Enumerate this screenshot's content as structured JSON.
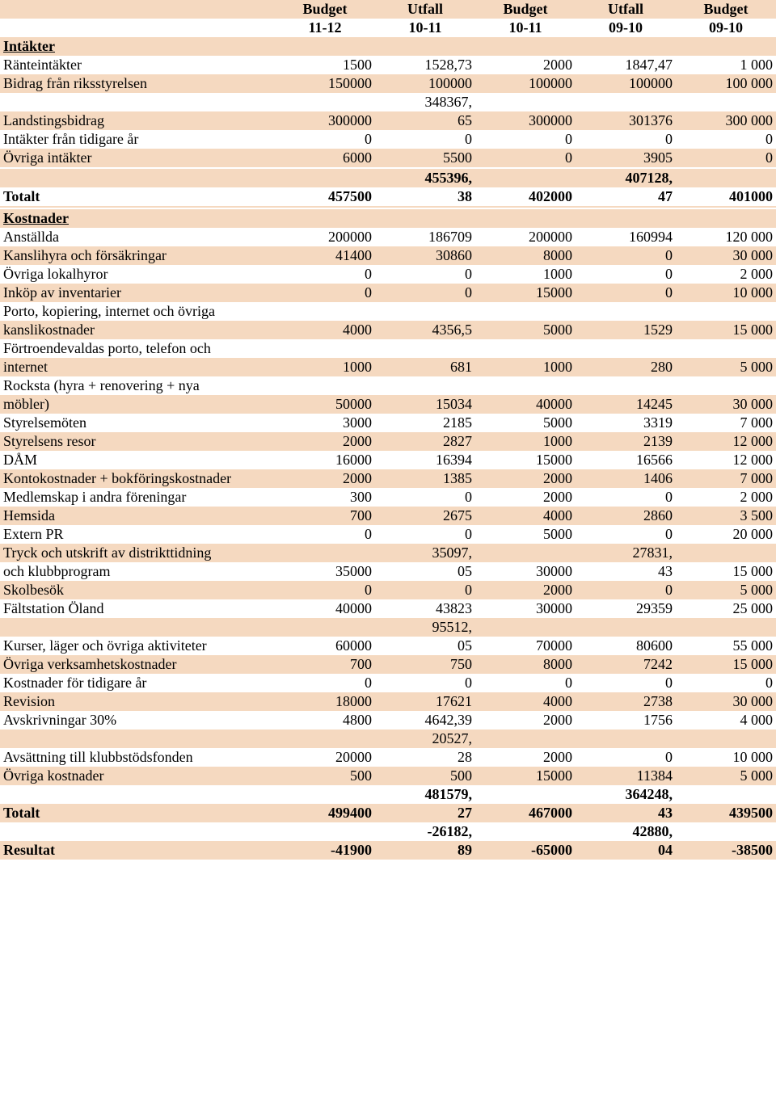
{
  "colors": {
    "odd_row_bg": "#f5d9c0",
    "even_row_bg": "#ffffff",
    "text": "#000000"
  },
  "typography": {
    "font_family": "Times New Roman",
    "base_fontsize": 18,
    "header_bold": true
  },
  "headers": {
    "row1": [
      "Budget",
      "Utfall",
      "Budget",
      "Utfall",
      "Budget"
    ],
    "row2": [
      "11-12",
      "10-11",
      "10-11",
      "09-10",
      "09-10"
    ]
  },
  "sections": {
    "intakter": {
      "title": "Intäkter",
      "rows": [
        {
          "label": "Ränteintäkter",
          "c": [
            "1500",
            "1528,73",
            "2000",
            "1847,47",
            "1 000"
          ]
        },
        {
          "label": "Bidrag från riksstyrelsen",
          "c": [
            "150000",
            "100000",
            "100000",
            "100000",
            "100 000"
          ]
        },
        {
          "label": "Landstingsbidrag",
          "c": [
            "300000",
            "348367,65",
            "300000",
            "301376",
            "300 000"
          ],
          "split2": true
        },
        {
          "label": "Intäkter från tidigare år",
          "c": [
            "0",
            "0",
            "0",
            "0",
            "0"
          ]
        },
        {
          "label": "Övriga intäkter",
          "c": [
            "6000",
            "5500",
            "0",
            "3905",
            "0"
          ]
        }
      ],
      "total": {
        "label": "Totalt",
        "c": [
          "457500",
          "455396,38",
          "402000",
          "407128,47",
          "401000"
        ],
        "split24": true
      }
    },
    "kostnader": {
      "title": "Kostnader",
      "rows": [
        {
          "label": "Anställda",
          "c": [
            "200000",
            "186709",
            "200000",
            "160994",
            "120 000"
          ]
        },
        {
          "label": "Kanslihyra och försäkringar",
          "c": [
            "41400",
            "30860",
            "8000",
            "0",
            "30 000"
          ]
        },
        {
          "label": "Övriga lokalhyror",
          "c": [
            "0",
            "0",
            "1000",
            "0",
            "2 000"
          ]
        },
        {
          "label": "Inköp av inventarier",
          "c": [
            "0",
            "0",
            "15000",
            "0",
            "10 000"
          ]
        },
        {
          "label": "Porto, kopiering, internet och övriga kanslikostnader",
          "c": [
            "4000",
            "4356,5",
            "5000",
            "1529",
            "15 000"
          ],
          "two_line_label": true
        },
        {
          "label": "Förtroendevaldas porto, telefon och internet",
          "c": [
            "1000",
            "681",
            "1000",
            "280",
            "5 000"
          ],
          "two_line_label": true
        },
        {
          "label": "Rocksta (hyra + renovering + nya möbler)",
          "c": [
            "50000",
            "15034",
            "40000",
            "14245",
            "30 000"
          ],
          "two_line_label": true
        },
        {
          "label": "Styrelsemöten",
          "c": [
            "3000",
            "2185",
            "5000",
            "3319",
            "7 000"
          ]
        },
        {
          "label": "Styrelsens resor",
          "c": [
            "2000",
            "2827",
            "1000",
            "2139",
            "12 000"
          ]
        },
        {
          "label": "DÅM",
          "c": [
            "16000",
            "16394",
            "15000",
            "16566",
            "12 000"
          ]
        },
        {
          "label": "Kontokostnader + bokföringskostnader",
          "c": [
            "2000",
            "1385",
            "2000",
            "1406",
            "7 000"
          ]
        },
        {
          "label": "Medlemskap i andra föreningar",
          "c": [
            "300",
            "0",
            "2000",
            "0",
            "2 000"
          ]
        },
        {
          "label": "Hemsida",
          "c": [
            "700",
            "2675",
            "4000",
            "2860",
            "3 500"
          ]
        },
        {
          "label": "Extern PR",
          "c": [
            "0",
            "0",
            "5000",
            "0",
            "20 000"
          ]
        },
        {
          "label": "Tryck och utskrift av distrikttidning och klubbprogram",
          "c": [
            "35000",
            "35097,05",
            "30000",
            "27831,43",
            "15 000"
          ],
          "two_line_label": true,
          "split24": true
        },
        {
          "label": "Skolbesök",
          "c": [
            "0",
            "0",
            "2000",
            "0",
            "5 000"
          ]
        },
        {
          "label": "Fältstation Öland",
          "c": [
            "40000",
            "43823",
            "30000",
            "29359",
            "25 000"
          ]
        },
        {
          "label": "Kurser, läger och övriga aktiviteter",
          "c": [
            "60000",
            "95512,05",
            "70000",
            "80600",
            "55 000"
          ],
          "split2": true
        },
        {
          "label": "Övriga verksamhetskostnader",
          "c": [
            "700",
            "750",
            "8000",
            "7242",
            "15 000"
          ]
        },
        {
          "label": "Kostnader för tidigare år",
          "c": [
            "0",
            "0",
            "0",
            "0",
            "0"
          ]
        },
        {
          "label": "Revision",
          "c": [
            "18000",
            "17621",
            "4000",
            "2738",
            "30 000"
          ]
        },
        {
          "label": "Avskrivningar 30%",
          "c": [
            "4800",
            "4642,39",
            "2000",
            "1756",
            "4 000"
          ]
        },
        {
          "label": "Avsättning till klubbstödsfonden",
          "c": [
            "20000",
            "20527,28",
            "2000",
            "0",
            "10 000"
          ],
          "split2": true
        },
        {
          "label": "Övriga kostnader",
          "c": [
            "500",
            "500",
            "15000",
            "11384",
            "5 000"
          ]
        }
      ],
      "total": {
        "label": "Totalt",
        "c": [
          "499400",
          "481579,27",
          "467000",
          "364248,43",
          "439500"
        ],
        "split24": true
      },
      "result": {
        "label": "Resultat",
        "c": [
          "-41900",
          "-26182,89",
          "-65000",
          "42880,04",
          "-38500"
        ],
        "split24": true
      }
    }
  }
}
